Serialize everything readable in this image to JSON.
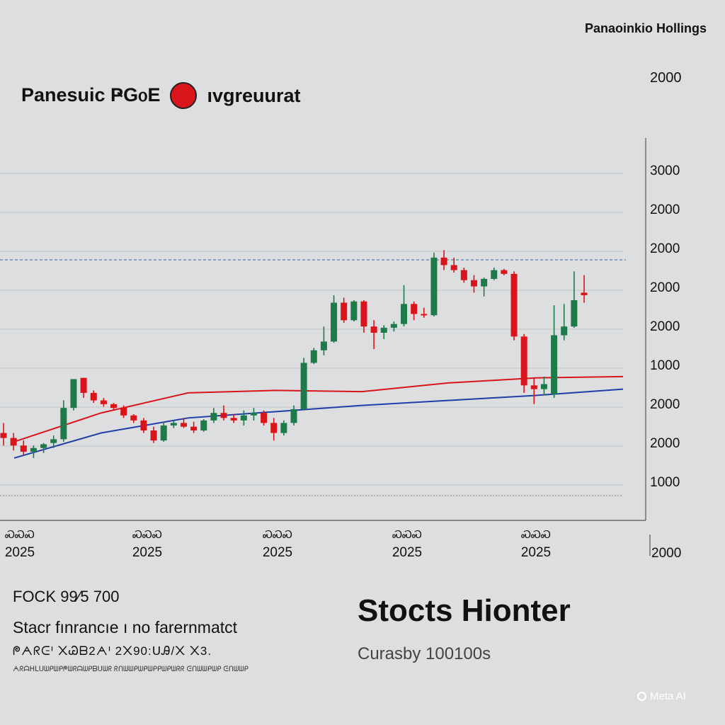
{
  "header": {
    "company": "Panaoinkio Hollings",
    "title": "Panesuic ҎԌ᧐E",
    "suffix": "ıvgreuurat",
    "top_price": "2000"
  },
  "colors": {
    "up": "#1f7a4a",
    "down": "#d9151b",
    "ma_red": "#d9151b",
    "ma_blue": "#1f3fa8",
    "live_dot": "#d9151b"
  },
  "chart_data": {
    "type": "candlestick",
    "ylabels": [
      "3000",
      "2000",
      "2000",
      "2000",
      "2000",
      "1000",
      "2000",
      "2000",
      "1000"
    ],
    "ylabel_extra": "2000",
    "xlabels": [
      {
        "top": "ᏍᏍᏍ",
        "year": "2025"
      },
      {
        "top": "ᏍᏍᏍ",
        "year": "2025"
      },
      {
        "top": "ᏍᏍᏍ",
        "year": "2025"
      },
      {
        "top": "ᏍᏍᏍ",
        "year": "2025"
      },
      {
        "top": "ᏍᏍᏍ",
        "year": "2025"
      }
    ],
    "reference_line": 2180,
    "y_min": 700,
    "y_max": 3300,
    "candles": [
      {
        "o": 1200,
        "h": 1280,
        "l": 1100,
        "c": 1160
      },
      {
        "o": 1160,
        "h": 1200,
        "l": 1060,
        "c": 1100
      },
      {
        "o": 1100,
        "h": 1140,
        "l": 1020,
        "c": 1050
      },
      {
        "o": 1050,
        "h": 1100,
        "l": 1000,
        "c": 1080
      },
      {
        "o": 1080,
        "h": 1120,
        "l": 1040,
        "c": 1110
      },
      {
        "o": 1120,
        "h": 1180,
        "l": 1080,
        "c": 1150
      },
      {
        "o": 1150,
        "h": 1460,
        "l": 1130,
        "c": 1400
      },
      {
        "o": 1400,
        "h": 1620,
        "l": 1380,
        "c": 1630
      },
      {
        "o": 1640,
        "h": 1640,
        "l": 1480,
        "c": 1520
      },
      {
        "o": 1520,
        "h": 1540,
        "l": 1440,
        "c": 1460
      },
      {
        "o": 1460,
        "h": 1480,
        "l": 1410,
        "c": 1430
      },
      {
        "o": 1430,
        "h": 1440,
        "l": 1380,
        "c": 1400
      },
      {
        "o": 1400,
        "h": 1420,
        "l": 1320,
        "c": 1340
      },
      {
        "o": 1340,
        "h": 1350,
        "l": 1280,
        "c": 1300
      },
      {
        "o": 1300,
        "h": 1320,
        "l": 1200,
        "c": 1220
      },
      {
        "o": 1220,
        "h": 1250,
        "l": 1120,
        "c": 1140
      },
      {
        "o": 1140,
        "h": 1290,
        "l": 1130,
        "c": 1260
      },
      {
        "o": 1260,
        "h": 1300,
        "l": 1240,
        "c": 1280
      },
      {
        "o": 1280,
        "h": 1320,
        "l": 1240,
        "c": 1250
      },
      {
        "o": 1250,
        "h": 1290,
        "l": 1200,
        "c": 1220
      },
      {
        "o": 1220,
        "h": 1310,
        "l": 1210,
        "c": 1300
      },
      {
        "o": 1300,
        "h": 1400,
        "l": 1280,
        "c": 1360
      },
      {
        "o": 1360,
        "h": 1420,
        "l": 1300,
        "c": 1320
      },
      {
        "o": 1320,
        "h": 1350,
        "l": 1280,
        "c": 1300
      },
      {
        "o": 1300,
        "h": 1380,
        "l": 1260,
        "c": 1340
      },
      {
        "o": 1340,
        "h": 1400,
        "l": 1300,
        "c": 1360
      },
      {
        "o": 1360,
        "h": 1380,
        "l": 1260,
        "c": 1280
      },
      {
        "o": 1280,
        "h": 1320,
        "l": 1140,
        "c": 1200
      },
      {
        "o": 1200,
        "h": 1300,
        "l": 1180,
        "c": 1280
      },
      {
        "o": 1280,
        "h": 1420,
        "l": 1260,
        "c": 1390
      },
      {
        "o": 1390,
        "h": 1800,
        "l": 1380,
        "c": 1760
      },
      {
        "o": 1760,
        "h": 1880,
        "l": 1750,
        "c": 1860
      },
      {
        "o": 1860,
        "h": 2050,
        "l": 1820,
        "c": 1930
      },
      {
        "o": 1930,
        "h": 2300,
        "l": 1920,
        "c": 2240
      },
      {
        "o": 2240,
        "h": 2280,
        "l": 2080,
        "c": 2100
      },
      {
        "o": 2100,
        "h": 2260,
        "l": 2090,
        "c": 2250
      },
      {
        "o": 2250,
        "h": 2260,
        "l": 2000,
        "c": 2050
      },
      {
        "o": 2050,
        "h": 2100,
        "l": 1870,
        "c": 2000
      },
      {
        "o": 2000,
        "h": 2060,
        "l": 1950,
        "c": 2040
      },
      {
        "o": 2040,
        "h": 2090,
        "l": 2010,
        "c": 2070
      },
      {
        "o": 2070,
        "h": 2380,
        "l": 2050,
        "c": 2230
      },
      {
        "o": 2230,
        "h": 2250,
        "l": 2100,
        "c": 2150
      },
      {
        "o": 2150,
        "h": 2200,
        "l": 2120,
        "c": 2140
      },
      {
        "o": 2140,
        "h": 2640,
        "l": 2130,
        "c": 2600
      },
      {
        "o": 2600,
        "h": 2660,
        "l": 2500,
        "c": 2540
      },
      {
        "o": 2540,
        "h": 2600,
        "l": 2480,
        "c": 2500
      },
      {
        "o": 2500,
        "h": 2520,
        "l": 2400,
        "c": 2420
      },
      {
        "o": 2420,
        "h": 2460,
        "l": 2320,
        "c": 2370
      },
      {
        "o": 2370,
        "h": 2440,
        "l": 2290,
        "c": 2430
      },
      {
        "o": 2430,
        "h": 2520,
        "l": 2420,
        "c": 2500
      },
      {
        "o": 2500,
        "h": 2510,
        "l": 2460,
        "c": 2470
      },
      {
        "o": 2470,
        "h": 2490,
        "l": 1940,
        "c": 1970
      },
      {
        "o": 1970,
        "h": 1990,
        "l": 1520,
        "c": 1580
      },
      {
        "o": 1580,
        "h": 1640,
        "l": 1430,
        "c": 1550
      },
      {
        "o": 1550,
        "h": 1650,
        "l": 1500,
        "c": 1590
      },
      {
        "o": 1510,
        "h": 2220,
        "l": 1480,
        "c": 1980
      },
      {
        "o": 1980,
        "h": 2230,
        "l": 1940,
        "c": 2050
      },
      {
        "o": 2050,
        "h": 2490,
        "l": 2040,
        "c": 2260
      },
      {
        "o": 2320,
        "h": 2460,
        "l": 2240,
        "c": 2300
      }
    ],
    "ma_red": [
      1130,
      1360,
      1520,
      1540,
      1530,
      1600,
      1640,
      1650
    ],
    "ma_blue": [
      1000,
      1200,
      1320,
      1370,
      1420,
      1460,
      1500,
      1550
    ],
    "grid": true
  },
  "footer": {
    "ticker": "FOCK 99⁄5 700",
    "description": "Stacr fınrancıe ı no farernmatct",
    "meta": "ᖘᗅᖇᕮᑊ ᙭Ꮚᗷ2ᗅᑊ 2᙭90:ᑌᎯ/᙭ ᙭3.",
    "fine_print": "ᗅᖇᗩᕼᒪᑌᗯᑭᗯᑭᖘᗯᖇᗩᗯᑭᗷᑌᗯᖇ ᖇᑎᗯᗯᑭᗯᑭᗯᑭᑭᗯᑭᗯᖇᖇ ᕮᑎᗯᗯᑭᗯᑭ ᕮᑎᗯᗯᑭ",
    "brand": "Stocts Hionter",
    "brand_sub": "Curasby 100100s"
  },
  "watermark": "Meta AI"
}
